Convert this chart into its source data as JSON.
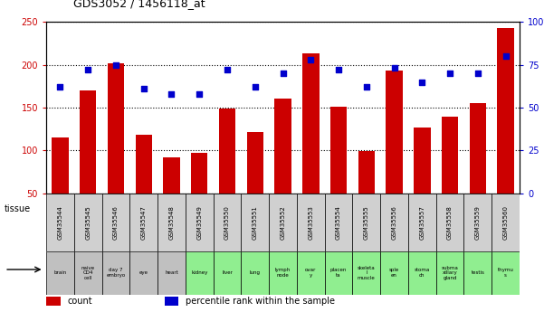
{
  "title": "GDS3052 / 1456118_at",
  "samples": [
    "GSM35544",
    "GSM35545",
    "GSM35546",
    "GSM35547",
    "GSM35548",
    "GSM35549",
    "GSM35550",
    "GSM35551",
    "GSM35552",
    "GSM35553",
    "GSM35554",
    "GSM35555",
    "GSM35556",
    "GSM35557",
    "GSM35558",
    "GSM35559",
    "GSM35560"
  ],
  "counts": [
    115,
    170,
    202,
    118,
    92,
    97,
    149,
    122,
    161,
    213,
    151,
    99,
    193,
    127,
    139,
    155,
    243
  ],
  "percentiles": [
    62,
    72,
    75,
    61,
    58,
    58,
    72,
    62,
    70,
    78,
    72,
    62,
    73,
    65,
    70,
    70,
    80
  ],
  "tissues": [
    "brain",
    "naive\nCD4\ncell",
    "day 7\nembryo",
    "eye",
    "heart",
    "kidney",
    "liver",
    "lung",
    "lymph\nnode",
    "ovar\ny",
    "placen\nta",
    "skeleta\nl\nmuscle",
    "sple\nen",
    "stoma\nch",
    "subma\nxillary\ngland",
    "testis",
    "thymu\ns"
  ],
  "tissue_colors": [
    "#c0c0c0",
    "#c0c0c0",
    "#c0c0c0",
    "#c0c0c0",
    "#c0c0c0",
    "#90ee90",
    "#90ee90",
    "#90ee90",
    "#90ee90",
    "#90ee90",
    "#90ee90",
    "#90ee90",
    "#90ee90",
    "#90ee90",
    "#90ee90",
    "#90ee90",
    "#90ee90"
  ],
  "bar_color": "#cc0000",
  "dot_color": "#0000cc",
  "ylim_left": [
    50,
    250
  ],
  "ylim_right": [
    0,
    100
  ],
  "yticks_left": [
    50,
    100,
    150,
    200,
    250
  ],
  "yticks_right": [
    0,
    25,
    50,
    75,
    100
  ],
  "ytick_right_labels": [
    "0",
    "25",
    "50",
    "75",
    "100%"
  ],
  "background_color": "#ffffff",
  "plot_bg_color": "#ffffff",
  "legend_count_label": "count",
  "legend_percentile_label": "percentile rank within the sample",
  "xticklabel_bg": "#d0d0d0"
}
